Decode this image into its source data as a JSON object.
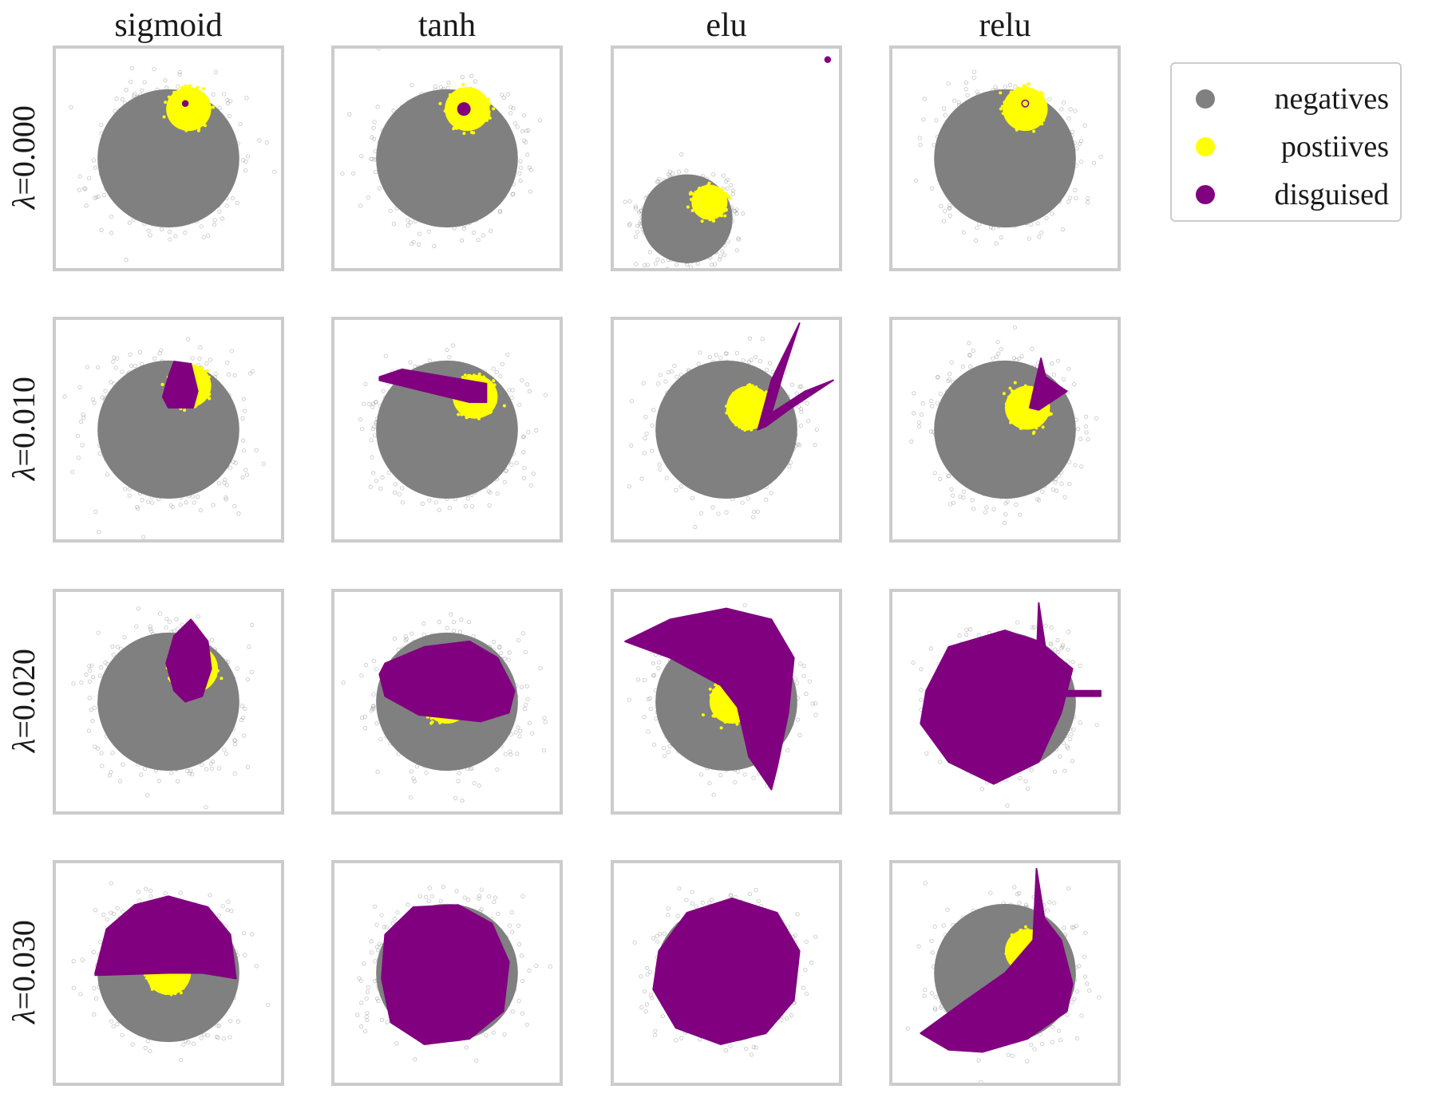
{
  "chart_data": {
    "type": "scatter",
    "columns": [
      "sigmoid",
      "tanh",
      "elu",
      "relu"
    ],
    "rows": [
      {
        "lambda_symbol": "λ",
        "value_text": "=0.000",
        "lambda": 0.0
      },
      {
        "lambda_symbol": "λ",
        "value_text": "=0.010",
        "lambda": 0.01
      },
      {
        "lambda_symbol": "λ",
        "value_text": "=0.020",
        "lambda": 0.02
      },
      {
        "lambda_symbol": "λ",
        "value_text": "=0.030",
        "lambda": 0.03
      }
    ],
    "legend": {
      "placement": "right",
      "entries": [
        {
          "label": "negatives",
          "color": "#808080"
        },
        {
          "label": "postiives",
          "color": "#ffff00"
        },
        {
          "label": "disguised",
          "color": "#800080"
        }
      ]
    },
    "axes": {
      "xlim": [
        -1,
        1
      ],
      "ylim": [
        -1,
        1
      ],
      "ticks": "none",
      "grid": false
    },
    "panels": [
      [
        {
          "negatives": {
            "cx": 0.0,
            "cy": 0.0,
            "r": 0.7
          },
          "positives": {
            "cx": 0.18,
            "cy": 0.45,
            "r": 0.2
          },
          "disguised": [
            {
              "shape": "dot",
              "cx": 0.15,
              "cy": 0.5,
              "r": 0.03
            }
          ]
        },
        {
          "negatives": {
            "cx": 0.0,
            "cy": 0.0,
            "r": 0.7
          },
          "positives": {
            "cx": 0.18,
            "cy": 0.45,
            "r": 0.2
          },
          "disguised": [
            {
              "shape": "dot",
              "cx": 0.15,
              "cy": 0.45,
              "r": 0.06
            }
          ]
        },
        {
          "negatives": {
            "cx": -0.35,
            "cy": -0.55,
            "r": 0.45
          },
          "positives": {
            "cx": -0.15,
            "cy": -0.4,
            "r": 0.16
          },
          "disguised": [
            {
              "shape": "dot",
              "cx": 0.9,
              "cy": 0.9,
              "r": 0.03
            }
          ]
        },
        {
          "negatives": {
            "cx": 0.0,
            "cy": 0.0,
            "r": 0.7
          },
          "positives": {
            "cx": 0.18,
            "cy": 0.45,
            "r": 0.2
          },
          "disguised": [
            {
              "shape": "ring",
              "cx": 0.18,
              "cy": 0.5,
              "r": 0.03
            }
          ]
        }
      ],
      [
        {
          "negatives": {
            "cx": 0.0,
            "cy": 0.0,
            "r": 0.7
          },
          "positives": {
            "cx": 0.18,
            "cy": 0.4,
            "r": 0.2
          },
          "disguised": [
            {
              "shape": "polygon",
              "points": [
                [
                  0.0,
                  0.48
                ],
                [
                  0.05,
                  0.62
                ],
                [
                  0.2,
                  0.6
                ],
                [
                  0.26,
                  0.35
                ],
                [
                  0.22,
                  0.2
                ],
                [
                  0.0,
                  0.2
                ],
                [
                  -0.05,
                  0.3
                ]
              ]
            }
          ]
        },
        {
          "negatives": {
            "cx": 0.0,
            "cy": 0.0,
            "r": 0.7
          },
          "positives": {
            "cx": 0.25,
            "cy": 0.3,
            "r": 0.2
          },
          "disguised": [
            {
              "shape": "polygon",
              "points": [
                [
                  -0.6,
                  0.48
                ],
                [
                  -0.4,
                  0.55
                ],
                [
                  0.35,
                  0.42
                ],
                [
                  0.35,
                  0.25
                ],
                [
                  0.2,
                  0.25
                ],
                [
                  -0.6,
                  0.45
                ]
              ]
            }
          ]
        },
        {
          "negatives": {
            "cx": 0.0,
            "cy": 0.0,
            "r": 0.7
          },
          "positives": {
            "cx": 0.2,
            "cy": 0.2,
            "r": 0.2
          },
          "disguised": [
            {
              "shape": "polygon",
              "points": [
                [
                  0.28,
                  0.0
                ],
                [
                  0.4,
                  0.45
                ],
                [
                  0.65,
                  0.97
                ],
                [
                  0.5,
                  0.5
                ],
                [
                  0.4,
                  0.15
                ],
                [
                  0.7,
                  0.35
                ],
                [
                  0.95,
                  0.45
                ],
                [
                  0.55,
                  0.18
                ],
                [
                  0.35,
                  0.03
                ]
              ]
            }
          ]
        },
        {
          "negatives": {
            "cx": 0.0,
            "cy": 0.0,
            "r": 0.7
          },
          "positives": {
            "cx": 0.2,
            "cy": 0.2,
            "r": 0.2
          },
          "disguised": [
            {
              "shape": "polygon",
              "points": [
                [
                  0.22,
                  0.2
                ],
                [
                  0.32,
                  0.65
                ],
                [
                  0.36,
                  0.48
                ],
                [
                  0.55,
                  0.35
                ],
                [
                  0.3,
                  0.18
                ]
              ]
            }
          ]
        }
      ],
      [
        {
          "negatives": {
            "cx": 0.0,
            "cy": 0.0,
            "r": 0.7
          },
          "positives": {
            "cx": 0.22,
            "cy": 0.3,
            "r": 0.22
          },
          "disguised": [
            {
              "shape": "polygon",
              "points": [
                [
                  0.05,
                  0.6
                ],
                [
                  0.2,
                  0.75
                ],
                [
                  0.35,
                  0.55
                ],
                [
                  0.38,
                  0.3
                ],
                [
                  0.3,
                  0.05
                ],
                [
                  0.15,
                  0.0
                ],
                [
                  0.05,
                  0.1
                ],
                [
                  -0.02,
                  0.35
                ]
              ]
            }
          ]
        },
        {
          "negatives": {
            "cx": 0.0,
            "cy": 0.0,
            "r": 0.7
          },
          "positives": {
            "cx": 0.0,
            "cy": 0.0,
            "r": 0.2
          },
          "disguised": [
            {
              "shape": "polygon",
              "points": [
                [
                  -0.55,
                  0.35
                ],
                [
                  -0.2,
                  0.5
                ],
                [
                  0.2,
                  0.55
                ],
                [
                  0.45,
                  0.4
                ],
                [
                  0.6,
                  0.1
                ],
                [
                  0.55,
                  -0.1
                ],
                [
                  0.3,
                  -0.18
                ],
                [
                  -0.25,
                  -0.12
                ],
                [
                  -0.55,
                  0.05
                ],
                [
                  -0.6,
                  0.25
                ]
              ]
            }
          ]
        },
        {
          "negatives": {
            "cx": 0.0,
            "cy": 0.0,
            "r": 0.7
          },
          "positives": {
            "cx": 0.05,
            "cy": 0.0,
            "r": 0.2
          },
          "disguised": [
            {
              "shape": "polygon",
              "points": [
                [
                  -0.9,
                  0.55
                ],
                [
                  -0.5,
                  0.75
                ],
                [
                  0.0,
                  0.85
                ],
                [
                  0.4,
                  0.75
                ],
                [
                  0.6,
                  0.4
                ],
                [
                  0.55,
                  -0.1
                ],
                [
                  0.45,
                  -0.6
                ],
                [
                  0.4,
                  -0.8
                ],
                [
                  0.2,
                  -0.5
                ],
                [
                  0.1,
                  -0.05
                ],
                [
                  -0.05,
                  0.15
                ],
                [
                  -0.5,
                  0.4
                ]
              ]
            }
          ]
        },
        {
          "negatives": {
            "cx": 0.0,
            "cy": 0.0,
            "r": 0.7
          },
          "positives": {
            "cx": 0.2,
            "cy": 0.2,
            "r": 0.2
          },
          "disguised": [
            {
              "shape": "polygon",
              "points": [
                [
                  -0.7,
                  0.1
                ],
                [
                  -0.5,
                  0.5
                ],
                [
                  0.0,
                  0.65
                ],
                [
                  0.3,
                  0.55
                ],
                [
                  0.6,
                  0.3
                ],
                [
                  0.5,
                  -0.1
                ],
                [
                  0.3,
                  -0.55
                ],
                [
                  -0.1,
                  -0.75
                ],
                [
                  -0.5,
                  -0.55
                ],
                [
                  -0.75,
                  -0.2
                ]
              ]
            },
            {
              "shape": "polygon",
              "points": [
                [
                  0.28,
                  0.35
                ],
                [
                  0.3,
                  0.9
                ],
                [
                  0.38,
                  0.35
                ]
              ]
            },
            {
              "shape": "polygon",
              "points": [
                [
                  0.35,
                  0.1
                ],
                [
                  0.85,
                  0.1
                ],
                [
                  0.85,
                  0.05
                ],
                [
                  0.35,
                  0.05
                ]
              ]
            }
          ]
        }
      ],
      [
        {
          "negatives": {
            "cx": 0.0,
            "cy": 0.0,
            "r": 0.7
          },
          "positives": {
            "cx": 0.0,
            "cy": 0.0,
            "r": 0.2
          },
          "disguised": [
            {
              "shape": "polygon",
              "points": [
                [
                  -0.65,
                  0.0
                ],
                [
                  -0.55,
                  0.4
                ],
                [
                  -0.3,
                  0.62
                ],
                [
                  0.0,
                  0.7
                ],
                [
                  0.35,
                  0.6
                ],
                [
                  0.55,
                  0.35
                ],
                [
                  0.6,
                  -0.05
                ],
                [
                  0.3,
                  0.0
                ],
                [
                  0.0,
                  0.0
                ],
                [
                  -0.65,
                  -0.02
                ]
              ]
            }
          ]
        },
        {
          "negatives": {
            "cx": 0.0,
            "cy": 0.0,
            "r": 0.7
          },
          "positives": {
            "cx": 0.0,
            "cy": 0.0,
            "r": 0.2
          },
          "disguised": [
            {
              "shape": "polygon",
              "points": [
                [
                  -0.55,
                  0.35
                ],
                [
                  -0.3,
                  0.6
                ],
                [
                  0.1,
                  0.62
                ],
                [
                  0.4,
                  0.45
                ],
                [
                  0.55,
                  0.1
                ],
                [
                  0.5,
                  -0.35
                ],
                [
                  0.2,
                  -0.6
                ],
                [
                  -0.2,
                  -0.65
                ],
                [
                  -0.5,
                  -0.45
                ],
                [
                  -0.58,
                  -0.05
                ]
              ]
            }
          ]
        },
        {
          "negatives": {
            "cx": 0.0,
            "cy": 0.0,
            "r": 0.7
          },
          "positives": {
            "cx": 0.0,
            "cy": 0.0,
            "r": 0.2
          },
          "disguised": [
            {
              "shape": "polygon",
              "points": [
                [
                  -0.6,
                  0.2
                ],
                [
                  -0.35,
                  0.55
                ],
                [
                  0.05,
                  0.68
                ],
                [
                  0.45,
                  0.55
                ],
                [
                  0.65,
                  0.2
                ],
                [
                  0.6,
                  -0.25
                ],
                [
                  0.35,
                  -0.55
                ],
                [
                  -0.05,
                  -0.65
                ],
                [
                  -0.45,
                  -0.5
                ],
                [
                  -0.65,
                  -0.15
                ]
              ]
            }
          ]
        },
        {
          "negatives": {
            "cx": 0.0,
            "cy": 0.0,
            "r": 0.7
          },
          "positives": {
            "cx": 0.2,
            "cy": 0.2,
            "r": 0.2
          },
          "disguised": [
            {
              "shape": "polygon",
              "points": [
                [
                  -0.75,
                  -0.55
                ],
                [
                  -0.35,
                  -0.25
                ],
                [
                  0.0,
                  0.0
                ],
                [
                  0.25,
                  0.3
                ],
                [
                  0.28,
                  0.95
                ],
                [
                  0.35,
                  0.5
                ],
                [
                  0.5,
                  0.3
                ],
                [
                  0.6,
                  -0.1
                ],
                [
                  0.55,
                  -0.35
                ],
                [
                  0.2,
                  -0.6
                ],
                [
                  -0.2,
                  -0.72
                ],
                [
                  -0.5,
                  -0.7
                ]
              ]
            }
          ]
        }
      ]
    ]
  }
}
